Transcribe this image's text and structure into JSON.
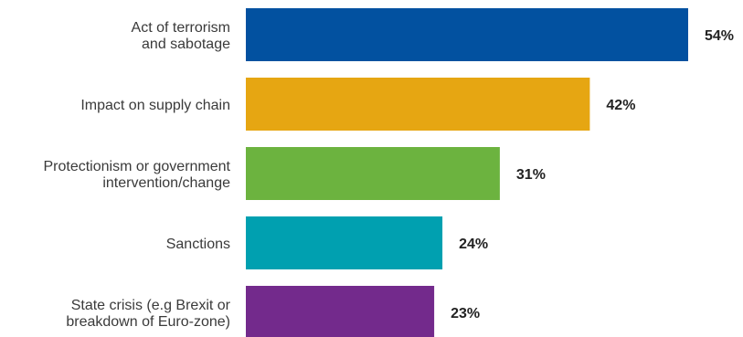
{
  "chart_data": {
    "type": "bar",
    "orientation": "horizontal",
    "categories": [
      [
        "Act of terrorism",
        "and sabotage"
      ],
      [
        "Impact on supply chain"
      ],
      [
        "Protectionism or government",
        "intervention/change"
      ],
      [
        "Sanctions"
      ],
      [
        "State crisis (e.g Brexit or",
        "breakdown of Euro-zone)"
      ]
    ],
    "values": [
      54,
      42,
      31,
      24,
      23
    ],
    "value_labels": [
      "54%",
      "42%",
      "31%",
      "24%",
      "23%"
    ],
    "colors": [
      "#0251a0",
      "#e6a612",
      "#6cb33f",
      "#00a0b0",
      "#732a8c"
    ],
    "xlim": [
      0,
      100
    ],
    "grid": false,
    "title": "",
    "xlabel": "",
    "ylabel": ""
  }
}
